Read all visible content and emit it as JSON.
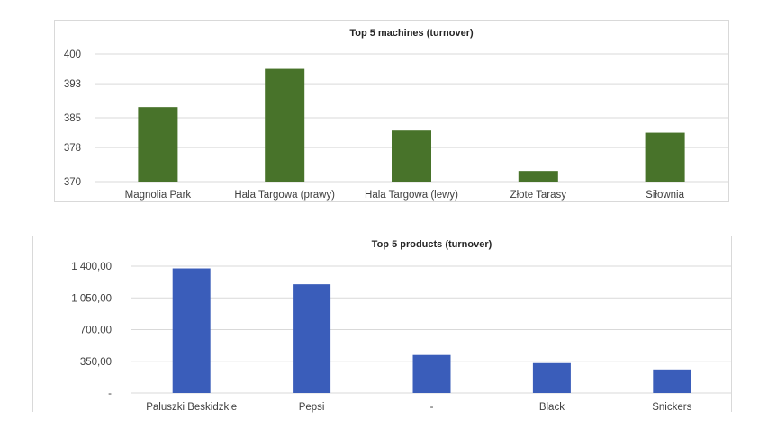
{
  "chart_data": [
    {
      "type": "bar",
      "title": "Top 5 machines (turnover)",
      "categories": [
        "Magnolia Park",
        "Hala Targowa (prawy)",
        "Hala Targowa (lewy)",
        "Złote Tarasy",
        "Siłownia"
      ],
      "values": [
        387.5,
        396.5,
        382.0,
        372.5,
        381.5
      ],
      "ylim": [
        370,
        400
      ],
      "yticks": [
        370,
        378,
        385,
        393,
        400
      ],
      "ytick_labels": [
        "370",
        "378",
        "385",
        "393",
        "400"
      ],
      "color": "#48732a",
      "grid": true,
      "legend": "none"
    },
    {
      "type": "bar",
      "title": "Top 5 products (turnover)",
      "categories": [
        "Paluszki Beskidzkie",
        "Pepsi",
        "-",
        "Black",
        "Snickers"
      ],
      "values": [
        1375,
        1200,
        420,
        330,
        260
      ],
      "ylim": [
        0,
        1400
      ],
      "yticks": [
        0,
        350,
        700,
        1050,
        1400
      ],
      "ytick_labels": [
        "-",
        "350,00",
        "700,00",
        "1 050,00",
        "1 400,00"
      ],
      "color": "#3a5dba",
      "grid": true,
      "legend": "none"
    }
  ]
}
